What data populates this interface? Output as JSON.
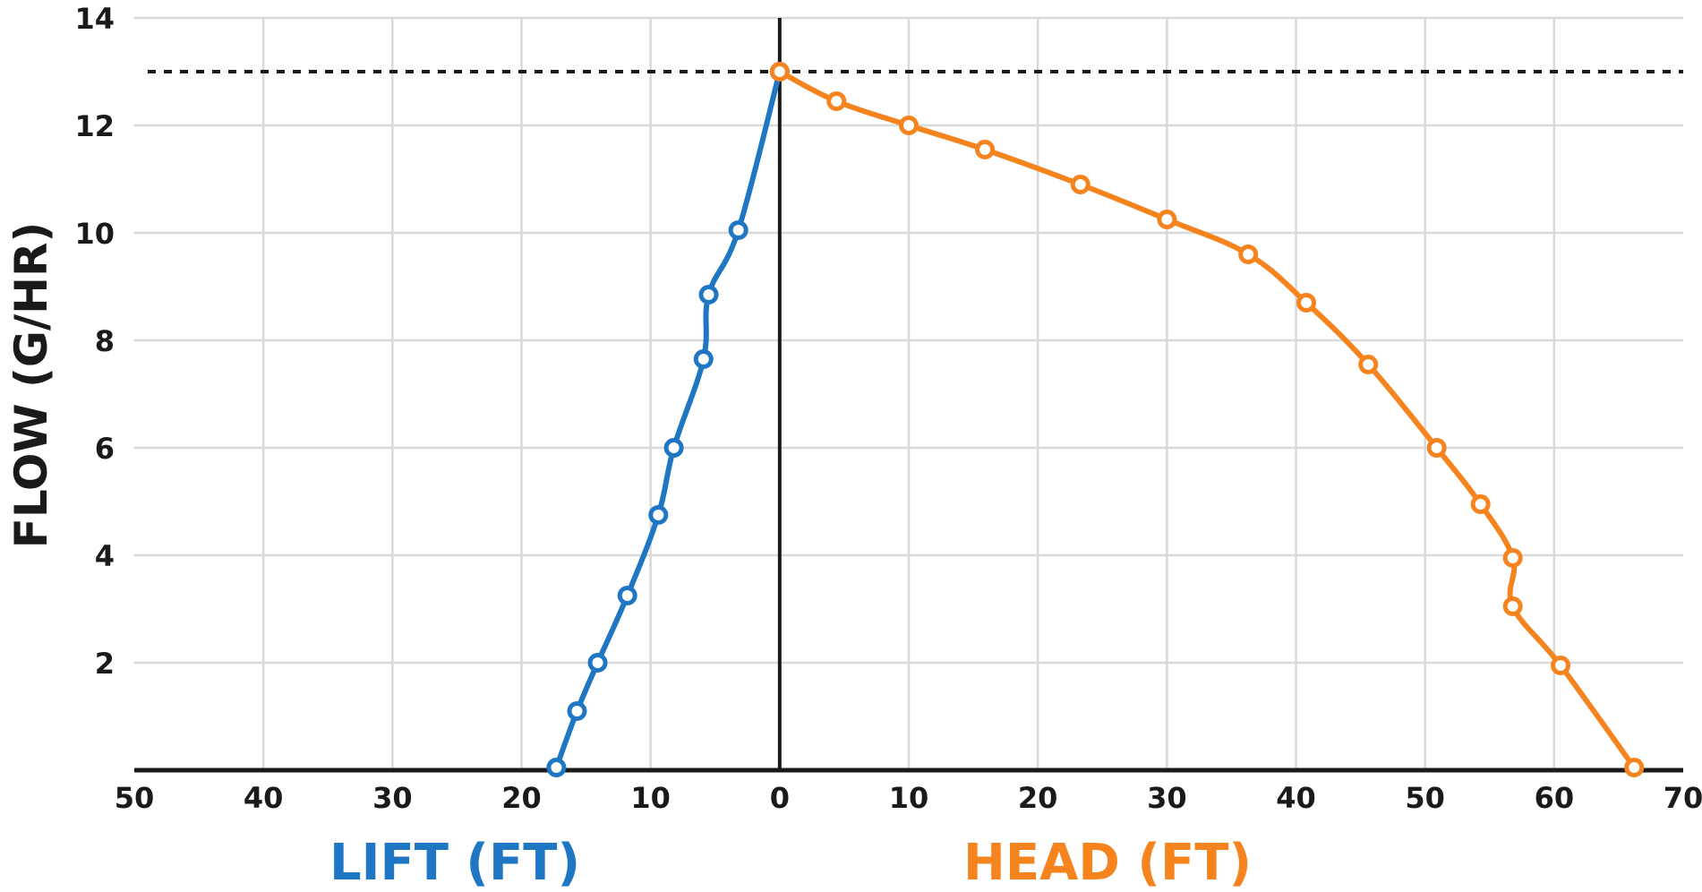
{
  "chart_data": {
    "type": "line",
    "ylabel": "FLOW (G/HR)",
    "y_ticks": [
      "2",
      "4",
      "6",
      "8",
      "10",
      "12",
      "14"
    ],
    "ylim": [
      0,
      14
    ],
    "x_ticks_left": [
      "50",
      "40",
      "30",
      "20",
      "10"
    ],
    "x_tick_zero": "0",
    "x_ticks_right": [
      "10",
      "20",
      "30",
      "40",
      "50",
      "60",
      "70"
    ],
    "xlim": [
      -50,
      70
    ],
    "reference_line": {
      "y": 13.0,
      "style": "dashed"
    },
    "grid": true,
    "series": [
      {
        "name": "LIFT (FT)",
        "color": "#1f77c4",
        "x": [
          17.3,
          15.7,
          14.1,
          11.8,
          9.4,
          8.2,
          5.9,
          5.5,
          3.2,
          0
        ],
        "y": [
          0.05,
          1.1,
          2.0,
          3.25,
          4.75,
          6.0,
          7.65,
          8.85,
          10.05,
          13.0
        ]
      },
      {
        "name": "HEAD (FT)",
        "color": "#f5841f",
        "x": [
          0,
          4.4,
          10.0,
          15.9,
          23.3,
          30.0,
          36.3,
          40.8,
          45.6,
          50.9,
          54.3,
          56.8,
          56.8,
          60.5,
          66.2
        ],
        "y": [
          13.0,
          12.45,
          12.0,
          11.55,
          10.9,
          10.25,
          9.6,
          8.7,
          7.55,
          6.0,
          4.95,
          3.95,
          3.05,
          1.95,
          0.05
        ]
      }
    ]
  }
}
